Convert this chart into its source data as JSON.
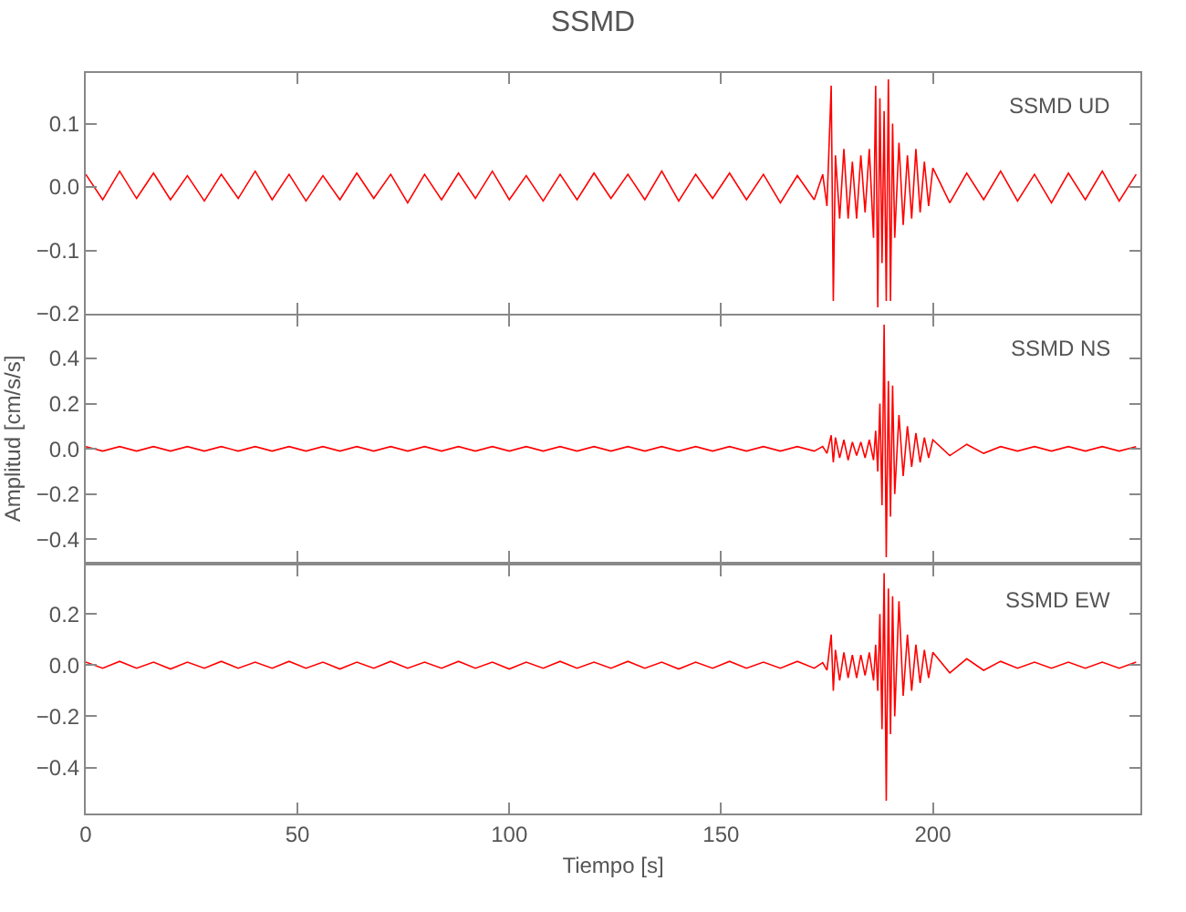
{
  "chart_data": [
    {
      "type": "line",
      "title": "SSMD",
      "annotations": [
        "SSMD UD"
      ],
      "tick_labels": "y",
      "x": [
        0,
        4,
        8,
        12,
        16,
        20,
        24,
        28,
        32,
        36,
        40,
        44,
        48,
        52,
        56,
        60,
        64,
        68,
        72,
        76,
        80,
        84,
        88,
        92,
        96,
        100,
        104,
        108,
        112,
        116,
        120,
        124,
        128,
        132,
        136,
        140,
        144,
        148,
        152,
        156,
        160,
        164,
        168,
        172,
        174,
        175,
        176,
        176.5,
        177,
        178,
        179,
        180,
        181,
        182,
        183,
        184,
        185,
        186,
        186.5,
        187,
        187.5,
        188,
        188.5,
        189,
        189.5,
        190,
        190.5,
        191,
        192,
        193,
        194,
        195,
        196,
        197,
        198,
        199,
        200,
        204,
        208,
        212,
        216,
        220,
        224,
        228,
        232,
        236,
        240,
        244,
        248
      ],
      "series": [
        {
          "color": "#ff0000",
          "values": [
            0.02,
            -0.02,
            0.025,
            -0.018,
            0.022,
            -0.02,
            0.018,
            -0.022,
            0.02,
            -0.018,
            0.025,
            -0.02,
            0.02,
            -0.022,
            0.018,
            -0.02,
            0.022,
            -0.018,
            0.02,
            -0.025,
            0.02,
            -0.02,
            0.022,
            -0.018,
            0.025,
            -0.02,
            0.018,
            -0.022,
            0.02,
            -0.02,
            0.022,
            -0.018,
            0.02,
            -0.02,
            0.025,
            -0.022,
            0.02,
            -0.018,
            0.022,
            -0.02,
            0.02,
            -0.025,
            0.018,
            -0.02,
            0.02,
            -0.03,
            0.16,
            -0.18,
            0.05,
            -0.05,
            0.06,
            -0.05,
            0.04,
            -0.05,
            0.05,
            -0.04,
            0.06,
            -0.08,
            0.16,
            -0.19,
            0.14,
            -0.12,
            0.12,
            -0.18,
            0.17,
            -0.18,
            0.1,
            -0.08,
            0.07,
            -0.06,
            0.05,
            -0.05,
            0.06,
            -0.04,
            0.04,
            -0.03,
            0.03,
            -0.025,
            0.022,
            -0.02,
            0.025,
            -0.022,
            0.02,
            -0.025,
            0.022,
            -0.02,
            0.025,
            -0.022,
            0.02
          ]
        }
      ],
      "xlim": [
        0,
        249
      ],
      "ylim": [
        -0.2,
        0.18
      ],
      "xticks": [
        0,
        50,
        100,
        150,
        200
      ],
      "yticks": [
        {
          "value": -0.2,
          "label": "−0.2"
        },
        {
          "value": -0.1,
          "label": "−0.1"
        },
        {
          "value": 0,
          "label": "0.0"
        },
        {
          "value": 0.1,
          "label": "0.1"
        }
      ]
    },
    {
      "type": "line",
      "ylabel": "Amplitud [cm/s/s]",
      "annotations": [
        "SSMD NS"
      ],
      "tick_labels": "y",
      "x": [
        0,
        4,
        8,
        12,
        16,
        20,
        24,
        28,
        32,
        36,
        40,
        44,
        48,
        52,
        56,
        60,
        64,
        68,
        72,
        76,
        80,
        84,
        88,
        92,
        96,
        100,
        104,
        108,
        112,
        116,
        120,
        124,
        128,
        132,
        136,
        140,
        144,
        148,
        152,
        156,
        160,
        164,
        168,
        172,
        174,
        175,
        176,
        176.5,
        177,
        178,
        179,
        180,
        181,
        182,
        183,
        184,
        185,
        186,
        186.5,
        187,
        187.5,
        188,
        188.5,
        189,
        189.5,
        190,
        190.5,
        191,
        192,
        193,
        194,
        195,
        196,
        197,
        198,
        199,
        200,
        204,
        208,
        212,
        216,
        220,
        224,
        228,
        232,
        236,
        240,
        244,
        248
      ],
      "series": [
        {
          "color": "#ff0000",
          "values": [
            0.01,
            -0.01,
            0.01,
            -0.01,
            0.01,
            -0.01,
            0.01,
            -0.01,
            0.01,
            -0.01,
            0.01,
            -0.01,
            0.01,
            -0.01,
            0.01,
            -0.01,
            0.01,
            -0.01,
            0.01,
            -0.01,
            0.01,
            -0.01,
            0.01,
            -0.01,
            0.01,
            -0.01,
            0.01,
            -0.01,
            0.01,
            -0.01,
            0.01,
            -0.01,
            0.01,
            -0.01,
            0.01,
            -0.01,
            0.01,
            -0.01,
            0.01,
            -0.01,
            0.01,
            -0.01,
            0.01,
            -0.01,
            0.01,
            -0.02,
            0.06,
            -0.06,
            0.05,
            -0.04,
            0.04,
            -0.05,
            0.03,
            -0.03,
            0.03,
            -0.04,
            0.04,
            -0.05,
            0.08,
            -0.1,
            0.2,
            -0.25,
            0.55,
            -0.48,
            0.3,
            -0.3,
            0.28,
            -0.2,
            0.15,
            -0.12,
            0.1,
            -0.08,
            0.07,
            -0.06,
            0.05,
            -0.04,
            0.04,
            -0.03,
            0.02,
            -0.02,
            0.01,
            -0.01,
            0.01,
            -0.01,
            0.01,
            -0.01,
            0.01,
            -0.01,
            0.01
          ]
        }
      ],
      "xlim": [
        0,
        249
      ],
      "ylim": [
        -0.5,
        0.59
      ],
      "xticks": [
        0,
        50,
        100,
        150,
        200
      ],
      "yticks": [
        {
          "value": -0.4,
          "label": "−0.4"
        },
        {
          "value": -0.2,
          "label": "−0.2"
        },
        {
          "value": 0,
          "label": "0.0"
        },
        {
          "value": 0.2,
          "label": "0.2"
        },
        {
          "value": 0.4,
          "label": "0.4"
        }
      ]
    },
    {
      "type": "line",
      "xlabel": "Tiempo [s]",
      "annotations": [
        "SSMD EW"
      ],
      "x": [
        0,
        4,
        8,
        12,
        16,
        20,
        24,
        28,
        32,
        36,
        40,
        44,
        48,
        52,
        56,
        60,
        64,
        68,
        72,
        76,
        80,
        84,
        88,
        92,
        96,
        100,
        104,
        108,
        112,
        116,
        120,
        124,
        128,
        132,
        136,
        140,
        144,
        148,
        152,
        156,
        160,
        164,
        168,
        172,
        174,
        175,
        176,
        176.5,
        177,
        178,
        179,
        180,
        181,
        182,
        183,
        184,
        185,
        186,
        186.5,
        187,
        187.5,
        188,
        188.5,
        189,
        189.5,
        190,
        190.5,
        191,
        192,
        193,
        194,
        195,
        196,
        197,
        198,
        199,
        200,
        204,
        208,
        212,
        216,
        220,
        224,
        228,
        232,
        236,
        240,
        244,
        248
      ],
      "series": [
        {
          "color": "#ff0000",
          "values": [
            0.012,
            -0.012,
            0.015,
            -0.012,
            0.012,
            -0.015,
            0.012,
            -0.012,
            0.015,
            -0.012,
            0.012,
            -0.012,
            0.015,
            -0.012,
            0.012,
            -0.015,
            0.012,
            -0.012,
            0.015,
            -0.012,
            0.012,
            -0.012,
            0.015,
            -0.012,
            0.012,
            -0.015,
            0.012,
            -0.012,
            0.015,
            -0.012,
            0.012,
            -0.012,
            0.015,
            -0.012,
            0.012,
            -0.015,
            0.012,
            -0.012,
            0.015,
            -0.012,
            0.012,
            -0.012,
            0.015,
            -0.012,
            0.01,
            -0.02,
            0.12,
            -0.1,
            0.06,
            -0.06,
            0.05,
            -0.05,
            0.04,
            -0.05,
            0.04,
            -0.04,
            0.05,
            -0.06,
            0.08,
            -0.1,
            0.2,
            -0.25,
            0.36,
            -0.53,
            0.3,
            -0.27,
            0.27,
            -0.2,
            0.25,
            -0.12,
            0.12,
            -0.1,
            0.08,
            -0.07,
            0.06,
            -0.05,
            0.05,
            -0.03,
            0.025,
            -0.02,
            0.015,
            -0.012,
            0.012,
            -0.012,
            0.012,
            -0.012,
            0.012,
            -0.012,
            0.012
          ]
        }
      ],
      "xlim": [
        0,
        249
      ],
      "ylim": [
        -0.58,
        0.39
      ],
      "xticks": [
        0,
        50,
        100,
        150,
        200
      ],
      "yticks": [
        {
          "value": -0.4,
          "label": "−0.4"
        },
        {
          "value": -0.2,
          "label": "−0.2"
        },
        {
          "value": 0,
          "label": "0.0"
        },
        {
          "value": 0.2,
          "label": "0.2"
        }
      ]
    }
  ]
}
